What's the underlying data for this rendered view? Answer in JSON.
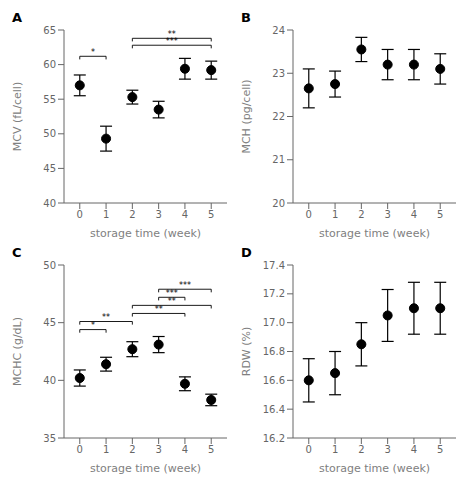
{
  "chart_data": [
    {
      "type": "scatter",
      "title": "A",
      "x": [
        0,
        1,
        2,
        3,
        4,
        5
      ],
      "values": [
        57.0,
        49.3,
        55.3,
        53.5,
        59.4,
        59.2
      ],
      "errors": [
        1.5,
        1.8,
        1.0,
        1.2,
        1.5,
        1.3
      ],
      "xlabel": "storage time (week)",
      "ylabel": "MCV (fL/cell)",
      "xlim": [
        -0.6,
        5.6
      ],
      "xticks": [
        0,
        1,
        2,
        3,
        4,
        5
      ],
      "ylim": [
        40,
        65
      ],
      "yticks": [
        40,
        45,
        50,
        55,
        60,
        65
      ],
      "color": "black",
      "marker": "o",
      "annotations": [
        {
          "x1": 0,
          "x2": 1,
          "y": 61.2,
          "label": "*"
        },
        {
          "x1": 2,
          "x2": 5,
          "y": 62.8,
          "label": "***"
        },
        {
          "x1": 2,
          "x2": 5,
          "y": 63.8,
          "label": "**"
        }
      ]
    },
    {
      "type": "scatter",
      "title": "B",
      "x": [
        0,
        1,
        2,
        3,
        4,
        5
      ],
      "values": [
        22.65,
        22.75,
        23.55,
        23.2,
        23.2,
        23.1
      ],
      "errors": [
        0.45,
        0.3,
        0.28,
        0.35,
        0.35,
        0.35
      ],
      "xlabel": "storage time (week)",
      "ylabel": "MCH (pg/cell)",
      "xlim": [
        -0.6,
        5.6
      ],
      "xticks": [
        0,
        1,
        2,
        3,
        4,
        5
      ],
      "ylim": [
        20,
        24
      ],
      "yticks": [
        20,
        21,
        22,
        23,
        24
      ],
      "color": "black",
      "marker": "o"
    },
    {
      "type": "scatter",
      "title": "C",
      "x": [
        0,
        1,
        2,
        3,
        4,
        5
      ],
      "values": [
        40.2,
        41.4,
        42.7,
        43.1,
        39.7,
        38.3
      ],
      "errors": [
        0.7,
        0.6,
        0.65,
        0.7,
        0.6,
        0.5
      ],
      "xlabel": "storage time (week)",
      "ylabel": "MCHC (g/dL)",
      "xlim": [
        -0.6,
        5.6
      ],
      "xticks": [
        0,
        1,
        2,
        3,
        4,
        5
      ],
      "ylim": [
        35,
        50
      ],
      "yticks": [
        35,
        40,
        45,
        50
      ],
      "color": "black",
      "marker": "o",
      "annotations": [
        {
          "x1": 0,
          "x2": 1,
          "y": 44.4,
          "label": "*"
        },
        {
          "x1": 0,
          "x2": 2,
          "y": 45.1,
          "label": "**"
        },
        {
          "x1": 2,
          "x2": 4,
          "y": 45.8,
          "label": "**"
        },
        {
          "x1": 2,
          "x2": 5,
          "y": 46.5,
          "label": "**"
        },
        {
          "x1": 3,
          "x2": 4,
          "y": 47.2,
          "label": "***"
        },
        {
          "x1": 3,
          "x2": 5,
          "y": 47.9,
          "label": "***"
        }
      ]
    },
    {
      "type": "scatter",
      "title": "D",
      "x": [
        0,
        1,
        2,
        3,
        4,
        5
      ],
      "values": [
        16.6,
        16.65,
        16.85,
        17.05,
        17.1,
        17.1
      ],
      "errors": [
        0.15,
        0.15,
        0.15,
        0.18,
        0.18,
        0.18
      ],
      "xlabel": "storage time (week)",
      "ylabel": "RDW (%)",
      "xlim": [
        -0.6,
        5.6
      ],
      "xticks": [
        0,
        1,
        2,
        3,
        4,
        5
      ],
      "ylim": [
        16.2,
        17.4
      ],
      "yticks": [
        16.2,
        16.4,
        16.6,
        16.8,
        {
          "value": 17.0,
          "label": "17.0"
        },
        17.2,
        17.4
      ],
      "color": "black",
      "marker": "o"
    }
  ]
}
